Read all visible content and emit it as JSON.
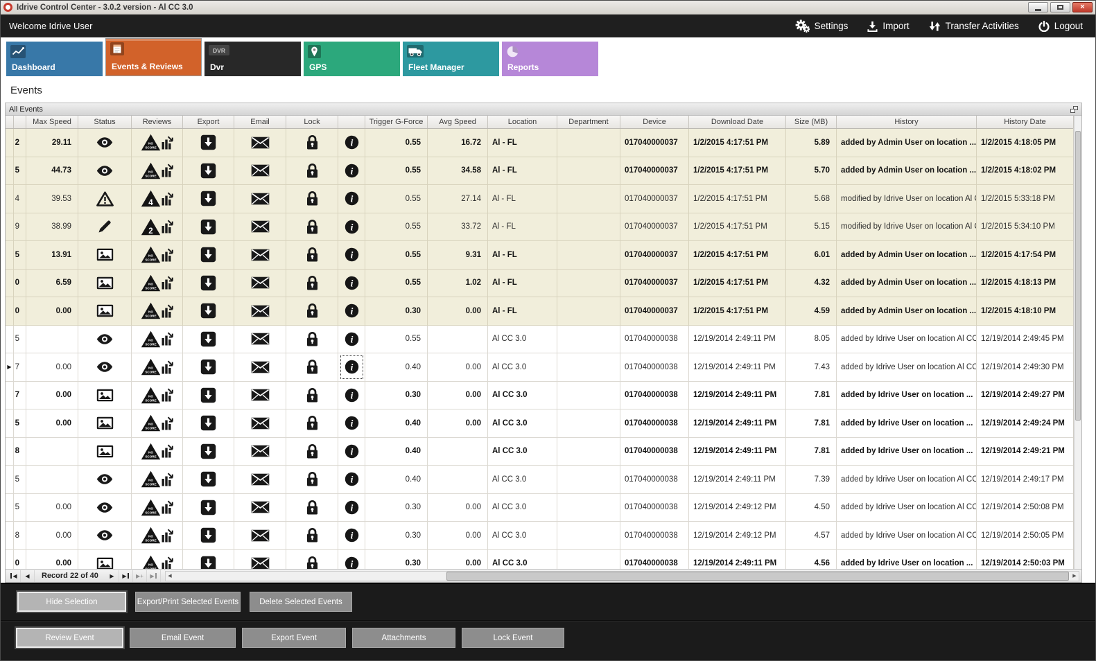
{
  "window": {
    "title": "Idrive Control Center - 3.0.2 version - Al CC 3.0",
    "controls": [
      "minimize-icon",
      "maximize-icon",
      "close-icon"
    ]
  },
  "topbar": {
    "welcome": "Welcome Idrive User",
    "actions": [
      {
        "label": "Settings",
        "icon": "gears-icon"
      },
      {
        "label": "Import",
        "icon": "import-icon"
      },
      {
        "label": "Transfer Activities",
        "icon": "transfer-icon"
      },
      {
        "label": "Logout",
        "icon": "power-icon"
      }
    ]
  },
  "tabs": [
    {
      "label": "Dashboard",
      "icon": "dashboard-chart-icon",
      "color": "#3878a8",
      "active": false
    },
    {
      "label": "Events & Reviews",
      "icon": "events-calendar-icon",
      "color": "#d2622a",
      "active": true
    },
    {
      "label": "Dvr",
      "icon": "dvr-logo-icon",
      "color": "#282828",
      "active": false
    },
    {
      "label": "GPS",
      "icon": "gps-pin-icon",
      "color": "#2ca87c",
      "active": false
    },
    {
      "label": "Fleet Manager",
      "icon": "fleet-truck-icon",
      "color": "#2d99a0",
      "active": false
    },
    {
      "label": "Reports",
      "icon": "reports-pie-icon",
      "color": "#b687d8",
      "active": false
    }
  ],
  "page": {
    "heading": "Events",
    "panel_title": "All Events"
  },
  "grid": {
    "shaded_row_color": "#f1eedb",
    "columns": [
      {
        "key": "rowind",
        "label": ""
      },
      {
        "key": "cut",
        "label": ""
      },
      {
        "key": "max_speed",
        "label": "Max Speed"
      },
      {
        "key": "status",
        "label": "Status"
      },
      {
        "key": "reviews",
        "label": "Reviews"
      },
      {
        "key": "export",
        "label": "Export"
      },
      {
        "key": "email",
        "label": "Email"
      },
      {
        "key": "lock",
        "label": "Lock"
      },
      {
        "key": "info",
        "label": ""
      },
      {
        "key": "trigger",
        "label": "Trigger G-Force"
      },
      {
        "key": "avg_speed",
        "label": "Avg Speed"
      },
      {
        "key": "location",
        "label": "Location"
      },
      {
        "key": "department",
        "label": "Department"
      },
      {
        "key": "device",
        "label": "Device"
      },
      {
        "key": "download_date",
        "label": "Download Date"
      },
      {
        "key": "size_mb",
        "label": "Size (MB)"
      },
      {
        "key": "history",
        "label": "History"
      },
      {
        "key": "history_date",
        "label": "History Date"
      }
    ],
    "rows": [
      {
        "cut": "2",
        "max_speed": "29.11",
        "status": "eye-icon",
        "review": "NO SCORE",
        "trigger": "0.55",
        "avg_speed": "16.72",
        "location": "Al - FL",
        "department": "",
        "device": "017040000037",
        "download_date": "1/2/2015 4:17:51 PM",
        "size_mb": "5.89",
        "history": "added by Admin User on location ...",
        "history_date": "1/2/2015 4:18:05 PM",
        "shaded": true,
        "bold": true,
        "selected": false
      },
      {
        "cut": "5",
        "max_speed": "44.73",
        "status": "eye-icon",
        "review": "NO SCORE",
        "trigger": "0.55",
        "avg_speed": "34.58",
        "location": "Al - FL",
        "department": "",
        "device": "017040000037",
        "download_date": "1/2/2015 4:17:51 PM",
        "size_mb": "5.70",
        "history": "added by Admin User on location ...",
        "history_date": "1/2/2015 4:18:02 PM",
        "shaded": true,
        "bold": true,
        "selected": false
      },
      {
        "cut": "4",
        "max_speed": "39.53",
        "status": "warning-icon",
        "review": "4",
        "trigger": "0.55",
        "avg_speed": "27.14",
        "location": "Al - FL",
        "department": "",
        "device": "017040000037",
        "download_date": "1/2/2015 4:17:51 PM",
        "size_mb": "5.68",
        "history": "modified by Idrive User on location Al C...",
        "history_date": "1/2/2015 5:33:18 PM",
        "shaded": true,
        "bold": false,
        "selected": false
      },
      {
        "cut": "9",
        "max_speed": "38.99",
        "status": "pencil-icon",
        "review": "2",
        "trigger": "0.55",
        "avg_speed": "33.72",
        "location": "Al - FL",
        "department": "",
        "device": "017040000037",
        "download_date": "1/2/2015 4:17:51 PM",
        "size_mb": "5.15",
        "history": "modified by Idrive User on location Al C...",
        "history_date": "1/2/2015 5:34:10 PM",
        "shaded": true,
        "bold": false,
        "selected": false
      },
      {
        "cut": "5",
        "max_speed": "13.91",
        "status": "photo-icon",
        "review": "NO SCORE",
        "trigger": "0.55",
        "avg_speed": "9.31",
        "location": "Al - FL",
        "department": "",
        "device": "017040000037",
        "download_date": "1/2/2015 4:17:51 PM",
        "size_mb": "6.01",
        "history": "added by Admin User on location ...",
        "history_date": "1/2/2015 4:17:54 PM",
        "shaded": true,
        "bold": true,
        "selected": false
      },
      {
        "cut": "0",
        "max_speed": "6.59",
        "status": "photo-icon",
        "review": "NO SCORE",
        "trigger": "0.55",
        "avg_speed": "1.02",
        "location": "Al - FL",
        "department": "",
        "device": "017040000037",
        "download_date": "1/2/2015 4:17:51 PM",
        "size_mb": "4.32",
        "history": "added by Admin User on location ...",
        "history_date": "1/2/2015 4:18:13 PM",
        "shaded": true,
        "bold": true,
        "selected": false
      },
      {
        "cut": "0",
        "max_speed": "0.00",
        "status": "photo-icon",
        "review": "NO SCORE",
        "trigger": "0.30",
        "avg_speed": "0.00",
        "location": "Al - FL",
        "department": "",
        "device": "017040000037",
        "download_date": "1/2/2015 4:17:51 PM",
        "size_mb": "4.59",
        "history": "added by Admin User on location ...",
        "history_date": "1/2/2015 4:18:10 PM",
        "shaded": true,
        "bold": true,
        "selected": false
      },
      {
        "cut": "5",
        "max_speed": "",
        "status": "eye-icon",
        "review": "NO SCORE",
        "trigger": "0.55",
        "avg_speed": "",
        "location": "Al CC 3.0",
        "department": "",
        "device": "017040000038",
        "download_date": "12/19/2014 2:49:11 PM",
        "size_mb": "8.05",
        "history": "added by Idrive User on location Al CC ...",
        "history_date": "12/19/2014 2:49:45 PM",
        "shaded": false,
        "bold": false,
        "selected": false
      },
      {
        "cut": "7",
        "max_speed": "0.00",
        "status": "eye-icon",
        "review": "NO SCORE",
        "trigger": "0.40",
        "avg_speed": "0.00",
        "location": "Al CC 3.0",
        "department": "",
        "device": "017040000038",
        "download_date": "12/19/2014 2:49:11 PM",
        "size_mb": "7.43",
        "history": "added by Idrive User on location Al CC ...",
        "history_date": "12/19/2014 2:49:30 PM",
        "shaded": false,
        "bold": false,
        "selected": true
      },
      {
        "cut": "7",
        "max_speed": "0.00",
        "status": "photo-icon",
        "review": "NO SCORE",
        "trigger": "0.30",
        "avg_speed": "0.00",
        "location": "Al CC 3.0",
        "department": "",
        "device": "017040000038",
        "download_date": "12/19/2014 2:49:11 PM",
        "size_mb": "7.81",
        "history": "added by Idrive User on location ...",
        "history_date": "12/19/2014 2:49:27 PM",
        "shaded": false,
        "bold": true,
        "selected": false
      },
      {
        "cut": "5",
        "max_speed": "0.00",
        "status": "photo-icon",
        "review": "NO SCORE",
        "trigger": "0.40",
        "avg_speed": "0.00",
        "location": "Al CC 3.0",
        "department": "",
        "device": "017040000038",
        "download_date": "12/19/2014 2:49:11 PM",
        "size_mb": "7.81",
        "history": "added by Idrive User on location ...",
        "history_date": "12/19/2014 2:49:24 PM",
        "shaded": false,
        "bold": true,
        "selected": false
      },
      {
        "cut": "8",
        "max_speed": "",
        "status": "photo-icon",
        "review": "NO SCORE",
        "trigger": "0.40",
        "avg_speed": "",
        "location": "Al CC 3.0",
        "department": "",
        "device": "017040000038",
        "download_date": "12/19/2014 2:49:11 PM",
        "size_mb": "7.81",
        "history": "added by Idrive User on location ...",
        "history_date": "12/19/2014 2:49:21 PM",
        "shaded": false,
        "bold": true,
        "selected": false
      },
      {
        "cut": "5",
        "max_speed": "",
        "status": "eye-icon",
        "review": "NO SCORE",
        "trigger": "0.40",
        "avg_speed": "",
        "location": "Al CC 3.0",
        "department": "",
        "device": "017040000038",
        "download_date": "12/19/2014 2:49:11 PM",
        "size_mb": "7.39",
        "history": "added by Idrive User on location Al CC ...",
        "history_date": "12/19/2014 2:49:17 PM",
        "shaded": false,
        "bold": false,
        "selected": false
      },
      {
        "cut": "5",
        "max_speed": "0.00",
        "status": "eye-icon",
        "review": "NO SCORE",
        "trigger": "0.30",
        "avg_speed": "0.00",
        "location": "Al CC 3.0",
        "department": "",
        "device": "017040000038",
        "download_date": "12/19/2014 2:49:12 PM",
        "size_mb": "4.50",
        "history": "added by Idrive User on location Al CC ...",
        "history_date": "12/19/2014 2:50:08 PM",
        "shaded": false,
        "bold": false,
        "selected": false
      },
      {
        "cut": "8",
        "max_speed": "0.00",
        "status": "eye-icon",
        "review": "NO SCORE",
        "trigger": "0.30",
        "avg_speed": "0.00",
        "location": "Al CC 3.0",
        "department": "",
        "device": "017040000038",
        "download_date": "12/19/2014 2:49:12 PM",
        "size_mb": "4.57",
        "history": "added by Idrive User on location Al CC ...",
        "history_date": "12/19/2014 2:50:05 PM",
        "shaded": false,
        "bold": false,
        "selected": false
      },
      {
        "cut": "0",
        "max_speed": "0.00",
        "status": "photo-icon",
        "review": "NO SCORE",
        "trigger": "0.30",
        "avg_speed": "0.00",
        "location": "Al CC 3.0",
        "department": "",
        "device": "017040000038",
        "download_date": "12/19/2014 2:49:11 PM",
        "size_mb": "4.56",
        "history": "added by Idrive User on location ...",
        "history_date": "12/19/2014 2:50:03 PM",
        "shaded": false,
        "bold": true,
        "selected": false
      }
    ]
  },
  "navigator": {
    "record_label": "Record 22 of 40"
  },
  "footer": {
    "selection_buttons": [
      {
        "label": "Hide Selection",
        "focused": true
      },
      {
        "label": "Export/Print Selected Events",
        "focused": false
      },
      {
        "label": "Delete Selected  Events",
        "focused": false
      }
    ],
    "event_buttons": [
      {
        "label": "Review Event",
        "focused": true
      },
      {
        "label": "Email Event",
        "focused": false
      },
      {
        "label": "Export Event",
        "focused": false
      },
      {
        "label": "Attachments",
        "focused": false
      },
      {
        "label": "Lock Event",
        "focused": false
      }
    ]
  }
}
